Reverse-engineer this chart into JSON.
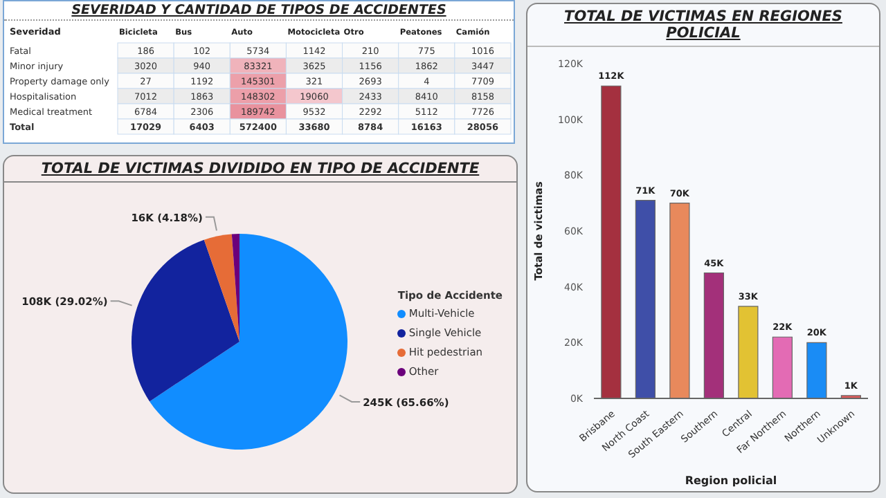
{
  "chart_data": [
    {
      "type": "heatmap",
      "title": "SEVERIDAD Y CANTIDAD DE TIPOS DE ACCIDENTES",
      "ylabel": "Severidad",
      "categories": [
        "Bicicleta",
        "Bus",
        "Auto",
        "Motocicleta",
        "Otro",
        "Peatones",
        "Camión"
      ],
      "data_labels": true,
      "y_categories": [
        "Fatal",
        "Minor injury",
        "Property damage only",
        "Hospitalisation",
        "Medical treatment",
        "Total"
      ],
      "cells": [
        [
          186,
          102,
          5734,
          1142,
          210,
          775,
          1016
        ],
        [
          3020,
          940,
          83321,
          3625,
          1156,
          1862,
          3447
        ],
        [
          27,
          1192,
          145301,
          321,
          2693,
          4,
          7709
        ],
        [
          7012,
          1863,
          148302,
          19060,
          2433,
          8410,
          8158
        ],
        [
          6784,
          2306,
          189742,
          9532,
          2292,
          5112,
          7726
        ],
        [
          17029,
          6403,
          572400,
          33680,
          8784,
          16163,
          28056
        ]
      ]
    },
    {
      "type": "pie",
      "title": "TOTAL DE VICTIMAS DIVIDIDO EN TIPO DE ACCIDENTE",
      "legend_title": "Tipo de Accidente",
      "legend": "right",
      "categories": [
        "Multi-Vehicle",
        "Single Vehicle",
        "Hit pedestrian",
        "Other"
      ],
      "values": [
        65.66,
        29.02,
        4.18,
        1.14
      ],
      "colors": [
        "#118dff",
        "#12239e",
        "#e66c37",
        "#6b007b"
      ],
      "value_labels": [
        "245K (65.66%)",
        "108K (29.02%)",
        "16K (4.18%)",
        null
      ]
    },
    {
      "type": "bar",
      "title": "TOTAL DE VICTIMAS EN REGIONES POLICIAL",
      "xlabel": "Region policial",
      "ylabel": "Total de victimas",
      "categories": [
        "Brisbane",
        "North Coast",
        "South Eastern",
        "Southern",
        "Central",
        "Far Northern",
        "Northern",
        "Unknown"
      ],
      "values": [
        112000,
        71000,
        70000,
        45000,
        33000,
        22000,
        20000,
        1000
      ],
      "colors": [
        "#a4303f",
        "#3f4fa8",
        "#e8895c",
        "#a3307a",
        "#e2c233",
        "#e36bb4",
        "#1a8cf5",
        "#e05a5a"
      ],
      "value_labels": [
        "112K",
        "71K",
        "70K",
        "45K",
        "33K",
        "22K",
        "20K",
        "1K"
      ],
      "ylim": [
        0,
        120000
      ],
      "yticks": [
        {
          "value": 0,
          "label": "0K"
        },
        {
          "value": 20000,
          "label": "20K"
        },
        {
          "value": 40000,
          "label": "40K"
        },
        {
          "value": 60000,
          "label": "60K"
        },
        {
          "value": 80000,
          "label": "80K"
        },
        {
          "value": 100000,
          "label": "100K"
        },
        {
          "value": 120000,
          "label": "120K"
        }
      ],
      "grid": false
    }
  ]
}
